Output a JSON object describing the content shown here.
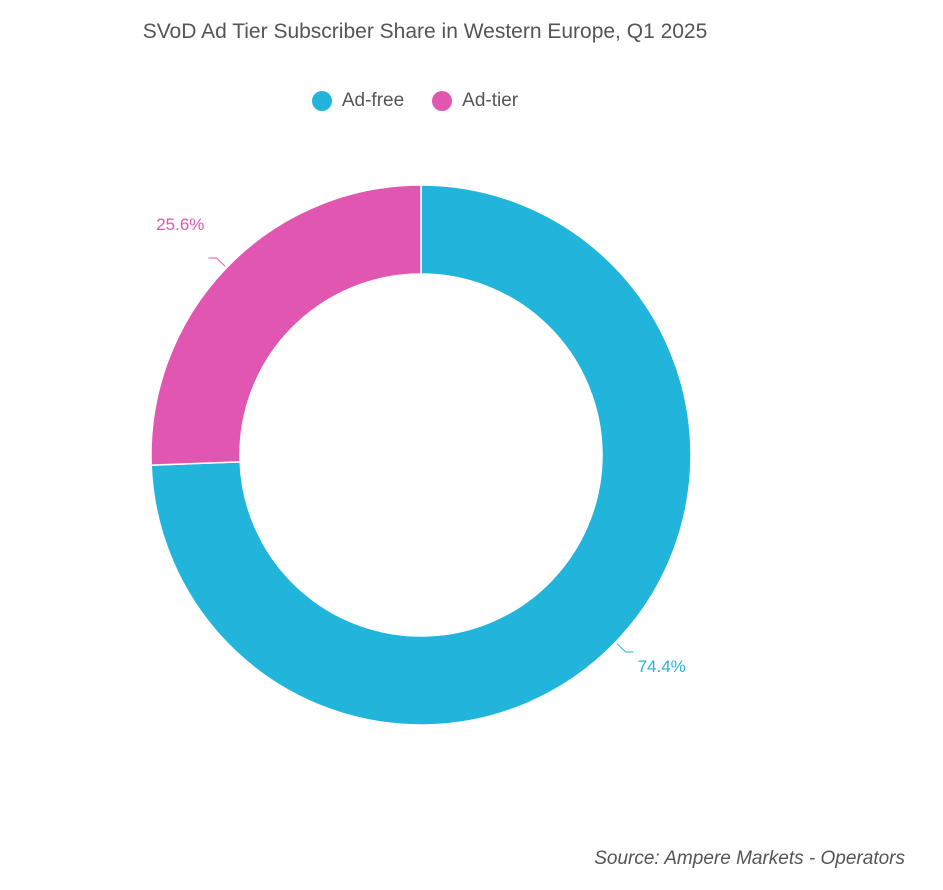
{
  "chart_data": {
    "type": "pie",
    "variant": "donut",
    "title": "SVoD Ad Tier Subscriber Share in Western Europe, Q1 2025",
    "legend_position": "top",
    "slices": [
      {
        "name": "Ad-free",
        "value": 74.4,
        "label": "74.4%",
        "color": "#22b5db"
      },
      {
        "name": "Ad-tier",
        "value": 25.6,
        "label": "25.6%",
        "color": "#e056b0"
      }
    ],
    "source": "Source: Ampere Markets - Operators"
  }
}
